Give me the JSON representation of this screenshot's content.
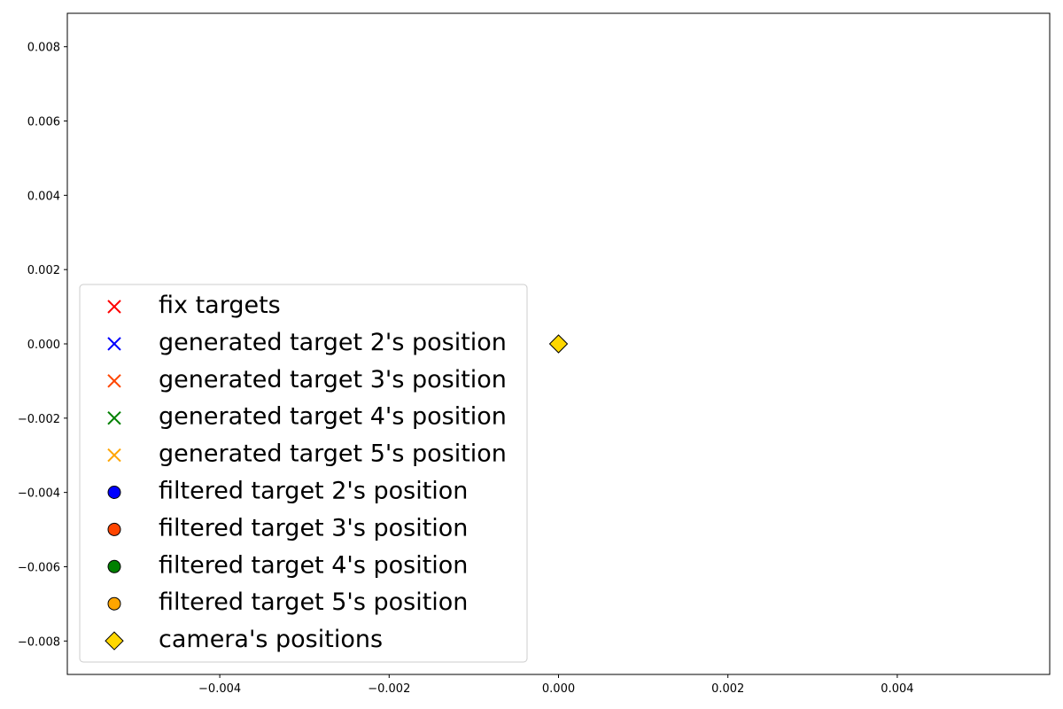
{
  "chart_data": {
    "type": "scatter",
    "title": "",
    "xlabel": "",
    "ylabel": "",
    "xlim": [
      -0.0058,
      0.0058
    ],
    "ylim": [
      -0.0089,
      0.0089
    ],
    "grid": false,
    "legend_placement": "lower-left",
    "x_ticks": [
      -0.004,
      -0.002,
      0.0,
      0.002,
      0.004
    ],
    "x_tick_labels": [
      "−0.004",
      "−0.002",
      "0.000",
      "0.002",
      "0.004"
    ],
    "y_ticks": [
      0.008,
      0.006,
      0.004,
      0.002,
      0.0,
      -0.002,
      -0.004,
      -0.006,
      -0.008
    ],
    "y_tick_labels": [
      "0.008",
      "0.006",
      "0.004",
      "0.002",
      "0.000",
      "−0.002",
      "−0.004",
      "−0.006",
      "−0.008"
    ],
    "series": [
      {
        "name": "fix targets",
        "marker": "x",
        "color": "#ff0000",
        "points": []
      },
      {
        "name": "generated target 2's position",
        "marker": "x",
        "color": "#0000ff",
        "points": []
      },
      {
        "name": "generated target 3's position",
        "marker": "x",
        "color": "#ff4500",
        "points": []
      },
      {
        "name": "generated target 4's position",
        "marker": "x",
        "color": "#008000",
        "points": []
      },
      {
        "name": "generated target 5's position",
        "marker": "x",
        "color": "#ffa500",
        "points": []
      },
      {
        "name": "filtered target 2's position",
        "marker": "circle",
        "color": "#0000ff",
        "points": []
      },
      {
        "name": "filtered target 3's position",
        "marker": "circle",
        "color": "#ff4500",
        "points": []
      },
      {
        "name": "filtered target 4's position",
        "marker": "circle",
        "color": "#008000",
        "points": []
      },
      {
        "name": "filtered target 5's position",
        "marker": "circle",
        "color": "#ffa500",
        "points": []
      },
      {
        "name": "camera's positions",
        "marker": "diamond",
        "color": "#ffd700",
        "points": [
          [
            0.0,
            0.0
          ]
        ]
      }
    ]
  }
}
